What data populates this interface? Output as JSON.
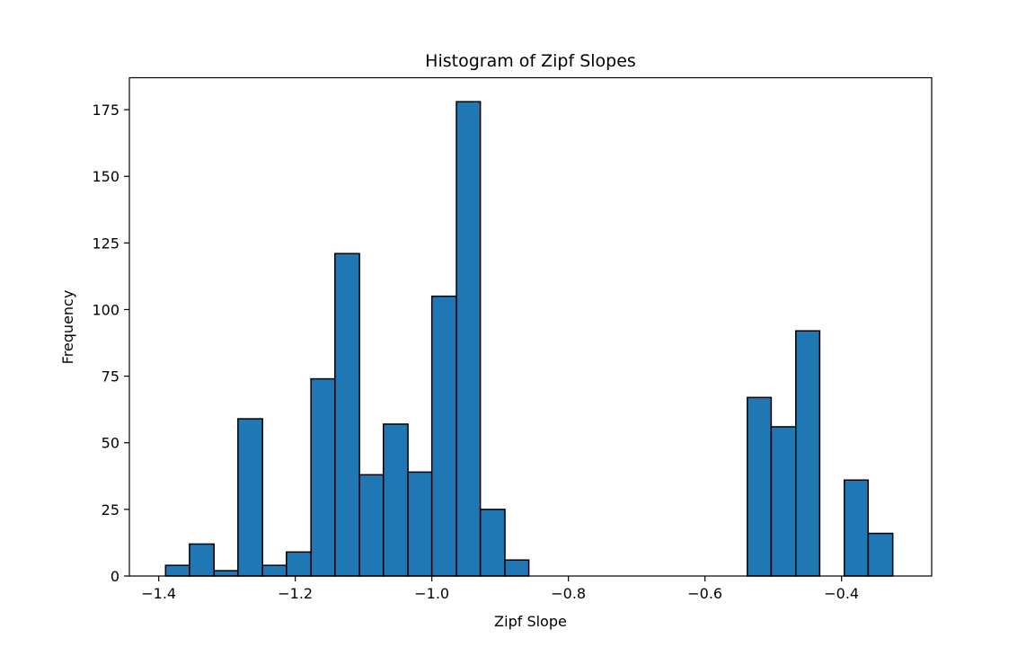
{
  "chart_data": {
    "type": "bar",
    "title": "Histogram of Zipf Slopes",
    "xlabel": "Zipf Slope",
    "ylabel": "Frequency",
    "xlim": [
      -1.443,
      -0.268
    ],
    "ylim": [
      0,
      187
    ],
    "xticks": [
      -1.4,
      -1.2,
      -1.0,
      -0.8,
      -0.6,
      -0.4
    ],
    "xtick_labels": [
      "−1.4",
      "−1.2",
      "−1.0",
      "−0.8",
      "−0.6",
      "−0.4"
    ],
    "yticks": [
      0,
      25,
      50,
      75,
      100,
      125,
      150,
      175
    ],
    "ytick_labels": [
      "0",
      "25",
      "50",
      "75",
      "100",
      "125",
      "150",
      "175"
    ],
    "bin_edges": [
      -1.39,
      -1.355,
      -1.319,
      -1.284,
      -1.248,
      -1.213,
      -1.177,
      -1.142,
      -1.106,
      -1.071,
      -1.035,
      -1.0,
      -0.964,
      -0.929,
      -0.893,
      -0.858,
      -0.822,
      -0.787,
      -0.751,
      -0.716,
      -0.68,
      -0.645,
      -0.609,
      -0.574,
      -0.538,
      -0.503,
      -0.467,
      -0.432,
      -0.396,
      -0.361,
      -0.325
    ],
    "values": [
      4,
      12,
      2,
      59,
      4,
      9,
      74,
      121,
      38,
      57,
      39,
      105,
      178,
      25,
      6,
      0,
      0,
      0,
      0,
      0,
      0,
      0,
      0,
      0,
      67,
      56,
      92,
      0,
      36,
      16
    ],
    "bar_color": "#1f77b4",
    "edge_color": "#000000",
    "grid": false,
    "legend": "none"
  }
}
